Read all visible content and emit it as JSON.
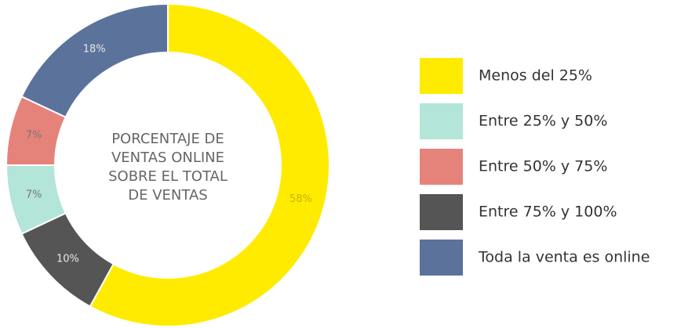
{
  "chart_data": {
    "type": "pie",
    "title": [
      "PORCENTAJE DE",
      "VENTAS ONLINE",
      "SOBRE EL TOTAL",
      "DE VENTAS"
    ],
    "categories": [
      "Menos del 25%",
      "Entre 25% y 50%",
      "Entre 50% y 75%",
      "Entre 75% y 100%",
      "Toda la venta es online"
    ],
    "values": [
      58,
      7,
      7,
      10,
      18
    ],
    "value_labels": [
      "58%",
      "7%",
      "7%",
      "10%",
      "18%"
    ],
    "colors": [
      "#ffeb00",
      "#b3e5d8",
      "#e5837a",
      "#555555",
      "#5b729b"
    ],
    "slice_order": [
      0,
      3,
      1,
      2,
      4
    ],
    "legend": "right"
  }
}
